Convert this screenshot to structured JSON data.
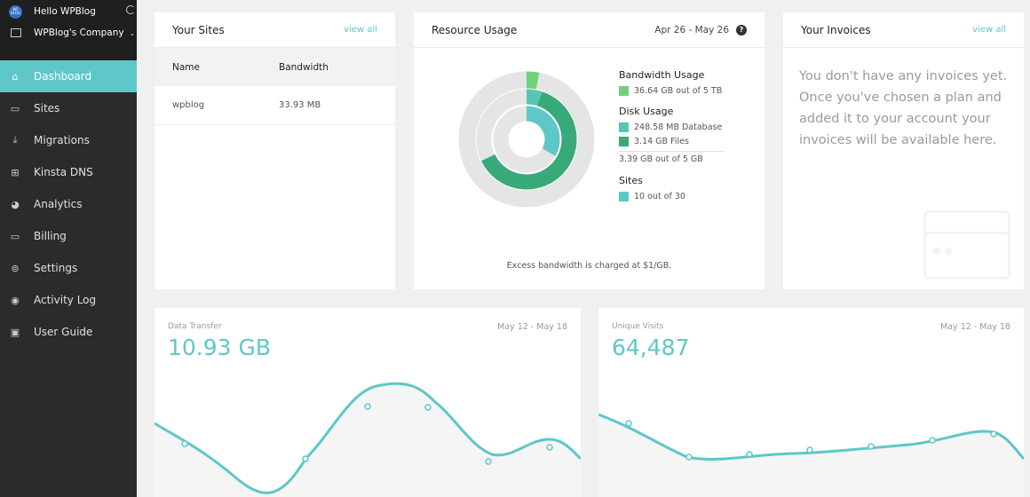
{
  "colors": {
    "accent": "#5ec7c8",
    "bandwidth": "#6fd37a",
    "database": "#56c6b4",
    "files": "#38aa7a",
    "sites": "#5ec7c8"
  },
  "sidebar": {
    "user": {
      "avatar_text": "WP BLOG",
      "name": "Hello WPBlog"
    },
    "company": "WPBlog's Company",
    "items": [
      {
        "label": "Dashboard",
        "icon": "home-icon",
        "glyph": "⌂",
        "active": true
      },
      {
        "label": "Sites",
        "icon": "monitor-icon",
        "glyph": "▭"
      },
      {
        "label": "Migrations",
        "icon": "download-icon",
        "glyph": "⤓"
      },
      {
        "label": "Kinsta DNS",
        "icon": "grid-icon",
        "glyph": "⊞"
      },
      {
        "label": "Analytics",
        "icon": "pie-chart-icon",
        "glyph": "◕"
      },
      {
        "label": "Billing",
        "icon": "credit-card-icon",
        "glyph": "▭"
      },
      {
        "label": "Settings",
        "icon": "gear-icon",
        "glyph": "⊚"
      },
      {
        "label": "Activity Log",
        "icon": "eye-icon",
        "glyph": "◉"
      },
      {
        "label": "User Guide",
        "icon": "book-icon",
        "glyph": "▣"
      }
    ]
  },
  "sites": {
    "title": "Your Sites",
    "view_all": "view all",
    "columns": [
      "Name",
      "Bandwidth"
    ],
    "rows": [
      {
        "name": "wpblog",
        "bandwidth": "33.93 MB"
      }
    ]
  },
  "resources": {
    "title": "Resource Usage",
    "date_range": "Apr 26 - May 26",
    "help": "?",
    "bandwidth_heading": "Bandwidth Usage",
    "bandwidth_value": "36.64 GB out of 5 TB",
    "bandwidth_fraction": 0.0071,
    "disk_heading": "Disk Usage",
    "database_value": "248.58 MB Database",
    "database_fraction": 0.0497,
    "files_value": "3.14 GB Files",
    "files_fraction": 0.628,
    "disk_total": "3.39 GB out of 5 GB",
    "sites_heading": "Sites",
    "sites_value": "10 out of 30",
    "sites_fraction": 0.3333,
    "note": "Excess bandwidth is charged at $1/GB."
  },
  "invoices": {
    "title": "Your Invoices",
    "view_all": "view all",
    "message": "You don't have any invoices yet. Once you've chosen a plan and added it to your account your invoices will be available here."
  },
  "data_transfer": {
    "label": "Data Transfer",
    "value": "10.93 GB",
    "range": "May 12 - May 18"
  },
  "unique_visits": {
    "label": "Unique Visits",
    "value": "64,487",
    "range": "May 12 - May 18"
  }
}
